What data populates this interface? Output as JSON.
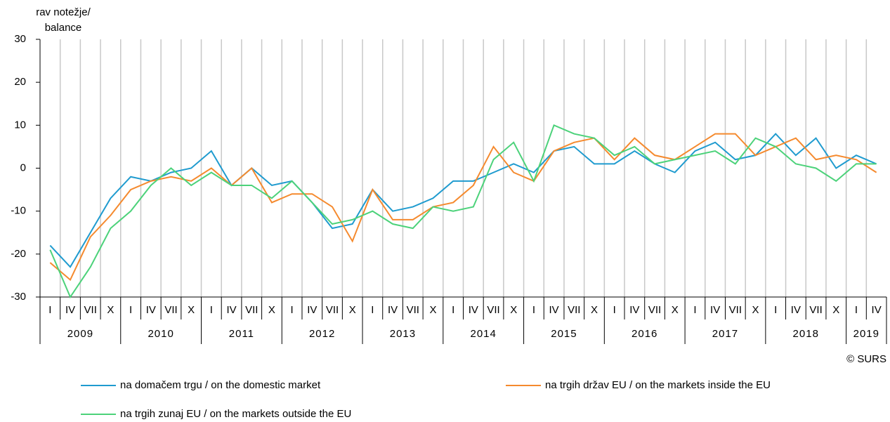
{
  "chart_data": {
    "type": "line",
    "y_label": [
      "rav notežje/",
      "balance"
    ],
    "credit": "© SURS",
    "categories": [
      "I",
      "IV",
      "VII",
      "X",
      "I",
      "IV",
      "VII",
      "X",
      "I",
      "IV",
      "VII",
      "X",
      "I",
      "IV",
      "VII",
      "X",
      "I",
      "IV",
      "VII",
      "X",
      "I",
      "IV",
      "VII",
      "X",
      "I",
      "IV",
      "VII",
      "X",
      "I",
      "IV",
      "VII",
      "X",
      "I",
      "IV",
      "VII",
      "X",
      "I",
      "IV",
      "VII",
      "X",
      "I",
      "IV"
    ],
    "years": [
      "2009",
      "2010",
      "2011",
      "2012",
      "2013",
      "2014",
      "2015",
      "2016",
      "2017",
      "2018",
      "2019"
    ],
    "ylim": [
      -30,
      30
    ],
    "yticks": [
      -30,
      -20,
      -10,
      0,
      10,
      20,
      30
    ],
    "series": [
      {
        "name": "na domačem trgu / on the domestic market",
        "color": "#1f9bcf",
        "values": [
          -18,
          -23,
          -15,
          -7,
          -2,
          -3,
          -1,
          0,
          4,
          -4,
          0,
          -4,
          -3,
          -8,
          -14,
          -13,
          -5,
          -10,
          -9,
          -7,
          -3,
          -3,
          -1,
          1,
          -1,
          4,
          5,
          1,
          1,
          4,
          1,
          -1,
          4,
          6,
          2,
          3,
          8,
          3,
          7,
          0,
          3,
          1
        ]
      },
      {
        "name": "na trgih držav EU / on the markets inside the EU",
        "color": "#f58a2e",
        "values": [
          -22,
          -26,
          -16,
          -11,
          -5,
          -3,
          -2,
          -3,
          0,
          -4,
          0,
          -8,
          -6,
          -6,
          -9,
          -17,
          -5,
          -12,
          -12,
          -9,
          -8,
          -4,
          5,
          -1,
          -3,
          4,
          6,
          7,
          2,
          7,
          3,
          2,
          5,
          8,
          8,
          3,
          5,
          7,
          2,
          3,
          2,
          -1
        ]
      },
      {
        "name": "na trgih zunaj EU / on the markets outside the EU",
        "color": "#4cd27a",
        "values": [
          -19,
          -30,
          -23,
          -14,
          -10,
          -4,
          0,
          -4,
          -1,
          -4,
          -4,
          -7,
          -3,
          -8,
          -13,
          -12,
          -10,
          -13,
          -14,
          -9,
          -10,
          -9,
          2,
          6,
          -3,
          10,
          8,
          7,
          3,
          5,
          1,
          2,
          3,
          4,
          1,
          7,
          5,
          1,
          0,
          -3,
          1,
          1
        ]
      }
    ]
  }
}
